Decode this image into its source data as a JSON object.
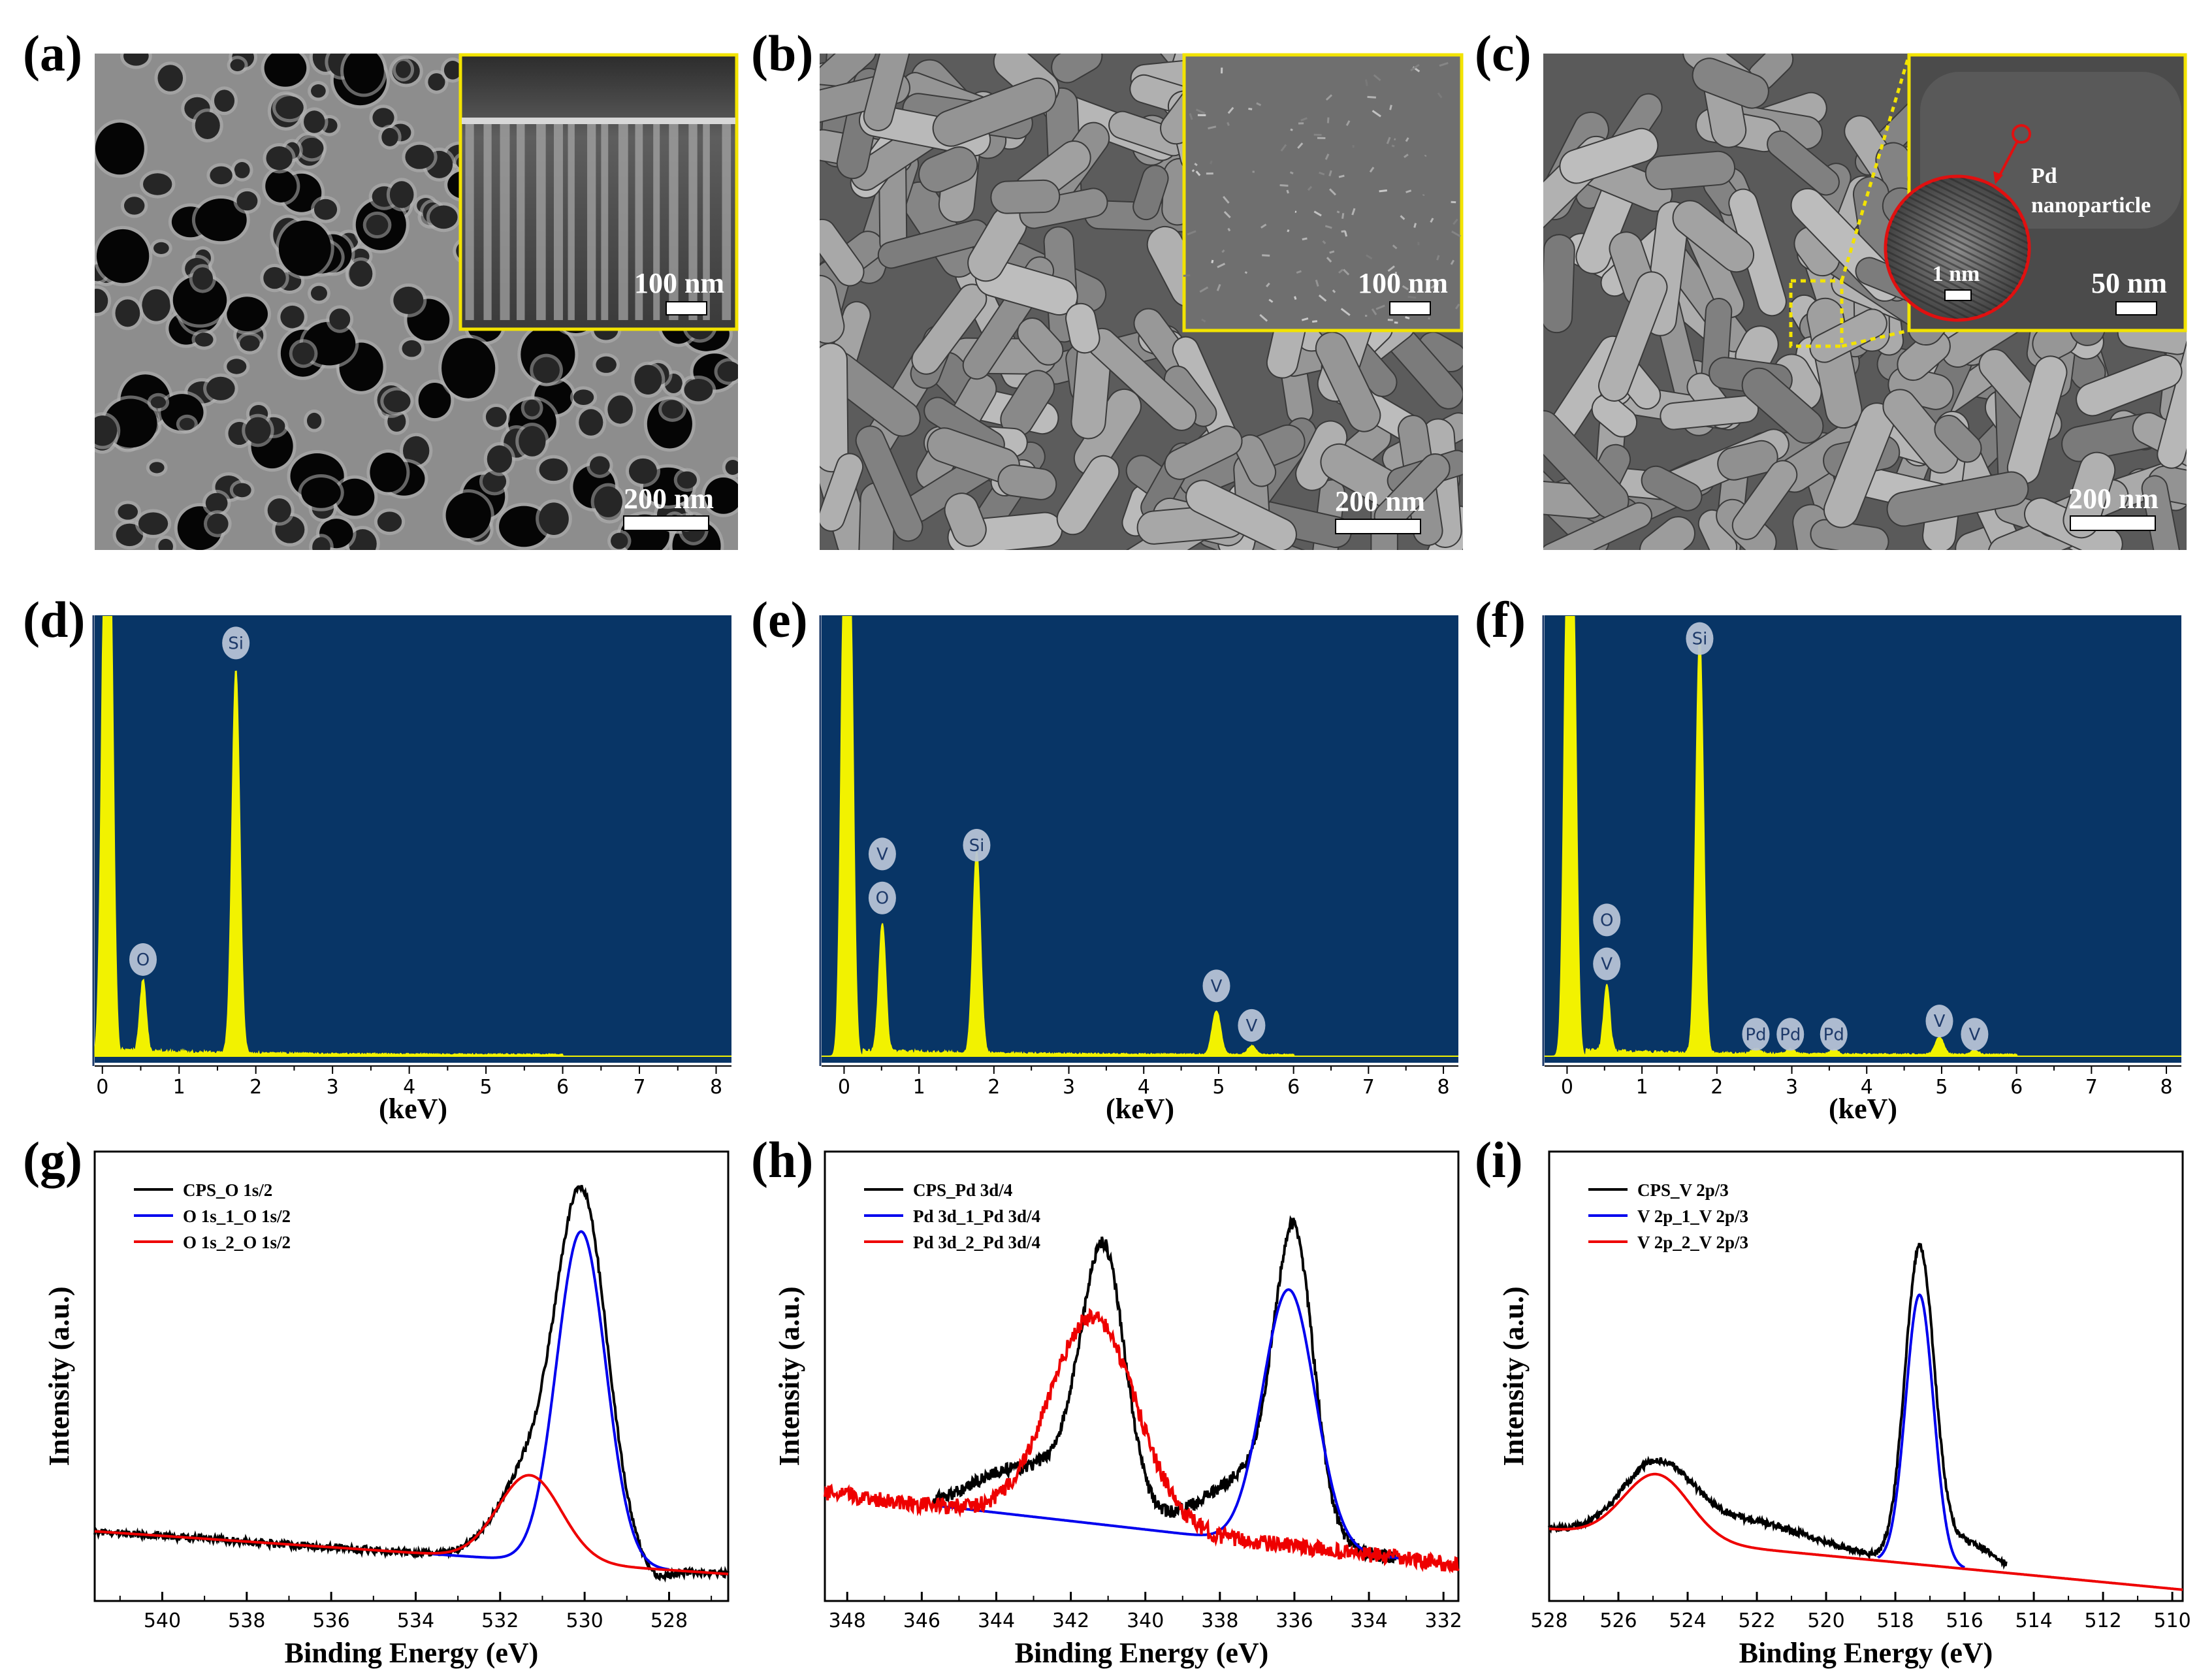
{
  "panel_labels": [
    "(a)",
    "(b)",
    "(c)",
    "(d)",
    "(e)",
    "(f)",
    "(g)",
    "(h)",
    "(i)"
  ],
  "sem": {
    "a": {
      "scale": "200 nm",
      "inset_scale": "100 nm"
    },
    "b": {
      "scale": "200 nm",
      "inset_scale": "100 nm"
    },
    "c": {
      "scale": "200 nm",
      "inset_scale": "50 nm",
      "hrtem_scale": "1 nm",
      "pd_label_1": "Pd",
      "pd_label_2": "nanoparticle"
    }
  },
  "colors": {
    "eds_bg": "#083566",
    "eds_peak": "#f2f200",
    "badge": "#b6c3d6",
    "cps": "#000000",
    "fit1": "#0000ee",
    "fit2": "#ee0000"
  },
  "chart_data": [
    {
      "id": "d",
      "type": "line",
      "title": "",
      "xlabel": "(keV)",
      "ylabel": "",
      "xlim": [
        -0.1,
        8.2
      ],
      "ylim": [
        0,
        100
      ],
      "x_ticks": [
        0,
        1,
        2,
        3,
        4,
        5,
        6,
        7,
        8
      ],
      "peaks": [
        {
          "x": 0.03,
          "height": 100,
          "width": 0.045
        },
        {
          "x": 0.1,
          "height": 100,
          "width": 0.045
        },
        {
          "x": 0.53,
          "height": 16,
          "width": 0.04
        },
        {
          "x": 1.74,
          "height": 87,
          "width": 0.05
        }
      ],
      "annotations": [
        {
          "label": "O",
          "x": 0.53,
          "level": 22
        },
        {
          "label": "Si",
          "x": 1.74,
          "level": 94
        }
      ]
    },
    {
      "id": "e",
      "type": "line",
      "title": "",
      "xlabel": "(keV)",
      "ylabel": "",
      "xlim": [
        -0.3,
        8.2
      ],
      "ylim": [
        0,
        100
      ],
      "x_ticks": [
        0,
        1,
        2,
        3,
        4,
        5,
        6,
        7,
        8
      ],
      "peaks": [
        {
          "x": 0.0,
          "height": 100,
          "width": 0.045
        },
        {
          "x": 0.08,
          "height": 100,
          "width": 0.045
        },
        {
          "x": 0.51,
          "height": 29,
          "width": 0.045
        },
        {
          "x": 1.77,
          "height": 46,
          "width": 0.05
        },
        {
          "x": 4.97,
          "height": 10,
          "width": 0.055
        },
        {
          "x": 5.44,
          "height": 2,
          "width": 0.05
        }
      ],
      "annotations": [
        {
          "label": "V",
          "x": 0.51,
          "level": 46
        },
        {
          "label": "O",
          "x": 0.51,
          "level": 36
        },
        {
          "label": "Si",
          "x": 1.77,
          "level": 48
        },
        {
          "label": "V",
          "x": 4.97,
          "level": 16
        },
        {
          "label": "V",
          "x": 5.44,
          "level": 7
        }
      ]
    },
    {
      "id": "f",
      "type": "line",
      "title": "",
      "xlabel": "(keV)",
      "ylabel": "",
      "xlim": [
        -0.3,
        8.2
      ],
      "ylim": [
        0,
        100
      ],
      "x_ticks": [
        0,
        1,
        2,
        3,
        4,
        5,
        6,
        7,
        8
      ],
      "peaks": [
        {
          "x": 0.0,
          "height": 100,
          "width": 0.045
        },
        {
          "x": 0.08,
          "height": 100,
          "width": 0.045
        },
        {
          "x": 0.53,
          "height": 15,
          "width": 0.04
        },
        {
          "x": 1.77,
          "height": 95,
          "width": 0.05
        },
        {
          "x": 2.52,
          "height": 1.2,
          "width": 0.05
        },
        {
          "x": 2.98,
          "height": 1.2,
          "width": 0.05
        },
        {
          "x": 3.56,
          "height": 1,
          "width": 0.05
        },
        {
          "x": 4.97,
          "height": 4,
          "width": 0.055
        },
        {
          "x": 5.44,
          "height": 1,
          "width": 0.05
        }
      ],
      "annotations": [
        {
          "label": "O",
          "x": 0.53,
          "level": 31
        },
        {
          "label": "V",
          "x": 0.53,
          "level": 21
        },
        {
          "label": "Si",
          "x": 1.77,
          "level": 95
        },
        {
          "label": "Pd",
          "x": 2.52,
          "level": 5
        },
        {
          "label": "Pd",
          "x": 2.98,
          "level": 5
        },
        {
          "label": "Pd",
          "x": 3.56,
          "level": 5
        },
        {
          "label": "V",
          "x": 4.97,
          "level": 8
        },
        {
          "label": "V",
          "x": 5.44,
          "level": 5
        }
      ]
    },
    {
      "id": "g",
      "type": "line",
      "title": "",
      "xlabel": "Binding Energy (eV)",
      "ylabel": "Intensity (a.u.)",
      "xlim": [
        541.6,
        526.6
      ],
      "ylim": [
        0,
        100
      ],
      "x_ticks": [
        540,
        538,
        536,
        534,
        532,
        530,
        528
      ],
      "baseline": {
        "x0": 541.6,
        "y0": 15.5,
        "x1": 526.6,
        "y1": 6
      },
      "series": [
        {
          "name": "CPS_O 1s/2",
          "color": "#000000",
          "kind": "cps",
          "peaks": [
            {
              "c": 530.05,
              "w": 0.6,
              "h": 79
            },
            {
              "c": 531.3,
              "w": 0.75,
              "h": 19
            }
          ],
          "noise": 0.8,
          "dip": {
            "c": 528.3,
            "w": 0.35,
            "h": -2.2
          }
        },
        {
          "name": "O 1s_1_O 1s/2",
          "color": "#0000ee",
          "kind": "fit1",
          "peaks": [
            {
              "c": 530.08,
              "w": 0.58,
              "h": 74
            }
          ],
          "range": [
            533.6,
            528.0
          ]
        },
        {
          "name": "O 1s_2_O 1s/2",
          "color": "#ee0000",
          "kind": "fit2",
          "peaks": [
            {
              "c": 531.3,
              "w": 0.75,
              "h": 19
            }
          ]
        }
      ]
    },
    {
      "id": "h",
      "type": "line",
      "title": "",
      "xlabel": "Binding Energy (eV)",
      "ylabel": "Intensity (a.u.)",
      "xlim": [
        348.6,
        331.6
      ],
      "ylim": [
        0,
        100
      ],
      "x_ticks": [
        348,
        346,
        344,
        342,
        340,
        338,
        336,
        334,
        332
      ],
      "baseline": {
        "x0": 348.6,
        "y0": 24,
        "x1": 331.6,
        "y1": 8
      },
      "series": [
        {
          "name": "CPS_Pd 3d/4",
          "color": "#000000",
          "kind": "cps",
          "peaks": [
            {
              "c": 341.1,
              "w": 0.55,
              "h": 46
            },
            {
              "c": 336.0,
              "w": 0.5,
              "h": 56
            },
            {
              "c": 341.5,
              "w": 0.9,
              "h": 18
            },
            {
              "c": 336.4,
              "w": 0.9,
              "h": 16
            },
            {
              "c": 343.7,
              "w": 1.0,
              "h": 9
            },
            {
              "c": 338.0,
              "w": 1.0,
              "h": 8
            }
          ],
          "noise": 1.4,
          "range": [
            345.7,
            333.3
          ]
        },
        {
          "name": "Pd 3d_1_Pd 3d/4",
          "color": "#0000ee",
          "kind": "fit1",
          "peaks": [
            {
              "c": 336.15,
              "w": 0.7,
              "h": 57
            }
          ],
          "range": [
            345.6,
            333.2
          ]
        },
        {
          "name": "Pd 3d_2_Pd 3d/4",
          "color": "#ee0000",
          "kind": "fit2",
          "peaks": [
            {
              "c": 341.4,
              "w": 1.15,
              "h": 46
            }
          ],
          "noise": 1.8
        }
      ]
    },
    {
      "id": "i",
      "type": "line",
      "title": "",
      "xlabel": "Binding Energy (eV)",
      "ylabel": "Intensity (a.u.)",
      "xlim": [
        528,
        509.7
      ],
      "ylim": [
        0,
        100
      ],
      "x_ticks": [
        528,
        526,
        524,
        522,
        520,
        518,
        516,
        514,
        512,
        510
      ],
      "baseline": {
        "x0": 528,
        "y0": 16,
        "x1": 509.7,
        "y1": 2.5
      },
      "series": [
        {
          "name": "CPS_V 2p/3",
          "color": "#000000",
          "kind": "cps",
          "peaks": [
            {
              "c": 517.3,
              "w": 0.42,
              "h": 69
            },
            {
              "c": 524.9,
              "w": 1.0,
              "h": 15
            },
            {
              "c": 522.3,
              "w": 2.0,
              "h": 6
            },
            {
              "c": 516.0,
              "w": 0.8,
              "h": 6
            }
          ],
          "noise": 0.7,
          "range": [
            528,
            514.8
          ]
        },
        {
          "name": "V 2p_1_V 2p/3",
          "color": "#0000ee",
          "kind": "fit1",
          "peaks": [
            {
              "c": 517.3,
              "w": 0.4,
              "h": 60
            }
          ],
          "range": [
            518.5,
            516.0
          ]
        },
        {
          "name": "V 2p_2_V 2p/3",
          "color": "#ee0000",
          "kind": "fit2",
          "peaks": [
            {
              "c": 524.9,
              "w": 0.95,
              "h": 14.5
            }
          ]
        }
      ]
    }
  ]
}
